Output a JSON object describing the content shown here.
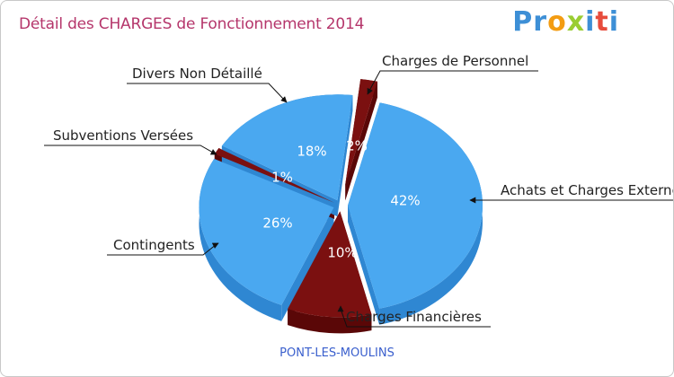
{
  "header": {
    "title": "Détail des CHARGES de Fonctionnement 2014",
    "logo": "Proxiti",
    "location": "PONT-LES-MOULINS"
  },
  "colors": {
    "blue": "#4aa8f0",
    "blue_dark": "#2f87d2",
    "red": "#7b1010",
    "red_dark": "#5a0707",
    "title": "#b5366b",
    "location": "#3a5fcd",
    "logo_letters": [
      "#3d8fd6",
      "#3d8fd6",
      "#f39c12",
      "#9acd32",
      "#3d8fd6",
      "#e74c3c",
      "#3d8fd6"
    ]
  },
  "chart_data": {
    "type": "pie",
    "title": "Détail des CHARGES de Fonctionnement 2014",
    "slices": [
      {
        "label": "Achats et Charges Externes",
        "value": 42,
        "pct_label": "42%",
        "color": "blue"
      },
      {
        "label": "Charges Financières",
        "value": 10,
        "pct_label": "10%",
        "color": "red"
      },
      {
        "label": "Contingents",
        "value": 26,
        "pct_label": "26%",
        "color": "blue"
      },
      {
        "label": "Subventions Versées",
        "value": 1,
        "pct_label": "1%",
        "color": "red"
      },
      {
        "label": "Divers Non Détaillé",
        "value": 18,
        "pct_label": "18%",
        "color": "blue"
      },
      {
        "label": "Charges de Personnel",
        "value": 2,
        "pct_label": "2%",
        "color": "red"
      }
    ]
  }
}
